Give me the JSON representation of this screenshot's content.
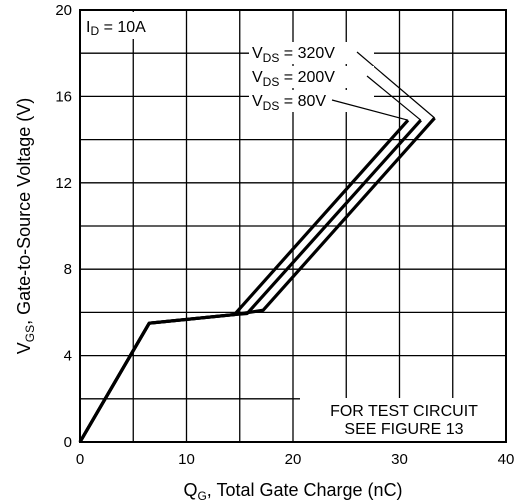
{
  "chart_data": {
    "type": "line",
    "title": "",
    "xlabel": {
      "main": "Q",
      "sub": "G",
      "rest": ", Total Gate Charge (nC)"
    },
    "ylabel": {
      "main": "V",
      "sub": "GS",
      "rest": ", Gate-to-Source Voltage (V)"
    },
    "xlim": [
      0,
      40
    ],
    "ylim": [
      0,
      20
    ],
    "xticks": [
      0,
      10,
      20,
      30,
      40
    ],
    "yticks": [
      0,
      4,
      8,
      12,
      16,
      20
    ],
    "grid": true,
    "condition": {
      "main": "I",
      "sub": "D",
      "rest": " = 10A"
    },
    "note_lines": [
      "FOR TEST CIRCUIT",
      "SEE FIGURE 13"
    ],
    "series": [
      {
        "label": {
          "main": "V",
          "sub": "DS",
          "rest": " = 80V"
        },
        "x": [
          0,
          6.5,
          14.5,
          30.8
        ],
        "y": [
          0,
          5.5,
          5.9,
          14.9
        ]
      },
      {
        "label": {
          "main": "V",
          "sub": "DS",
          "rest": " = 200V"
        },
        "x": [
          0,
          6.5,
          14.5,
          15.7,
          32.0
        ],
        "y": [
          0,
          5.5,
          5.9,
          5.95,
          14.9
        ]
      },
      {
        "label": {
          "main": "V",
          "sub": "DS",
          "rest": " = 320V"
        },
        "x": [
          0,
          6.5,
          14.5,
          17.2,
          33.3
        ],
        "y": [
          0,
          5.5,
          5.9,
          6.1,
          15.0
        ]
      }
    ]
  }
}
